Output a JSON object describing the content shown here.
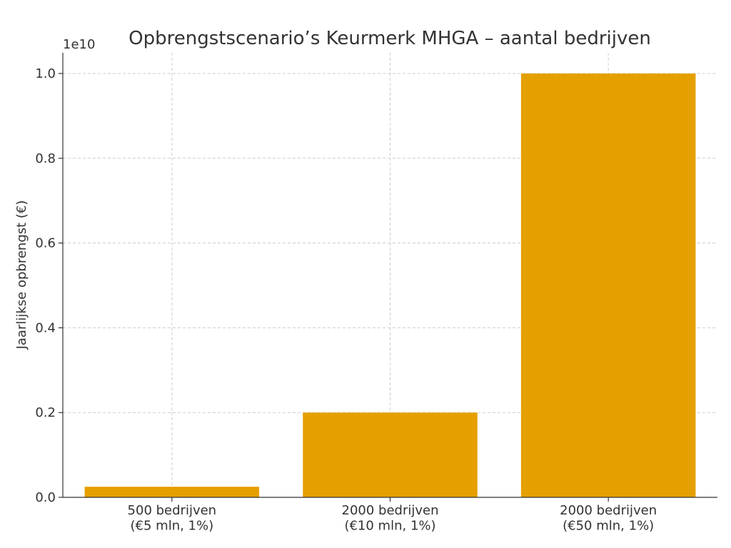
{
  "chart_data": {
    "type": "bar",
    "title": "Opbrengstscenario’s Keurmerk MHGA – aantal bedrijven",
    "ylabel": "Jaarlijkse opbrengst (€)",
    "xlabel": "",
    "y_offset_label": "1e10",
    "y_scale": 10000000000,
    "ylim": [
      0,
      10500000000
    ],
    "y_ticks": [
      0,
      2000000000,
      4000000000,
      6000000000,
      8000000000,
      10000000000
    ],
    "y_tick_labels": [
      "0.0",
      "0.2",
      "0.4",
      "0.6",
      "0.8",
      "1.0"
    ],
    "categories": [
      [
        "500 bedrijven",
        "(€5 mln, 1%)"
      ],
      [
        "2000 bedrijven",
        "(€10 mln, 1%)"
      ],
      [
        "2000 bedrijven",
        "(€50 mln, 1%)"
      ]
    ],
    "values": [
      250000000,
      2000000000,
      10000000000
    ],
    "bar_color": "#E5A000",
    "grid": true
  }
}
